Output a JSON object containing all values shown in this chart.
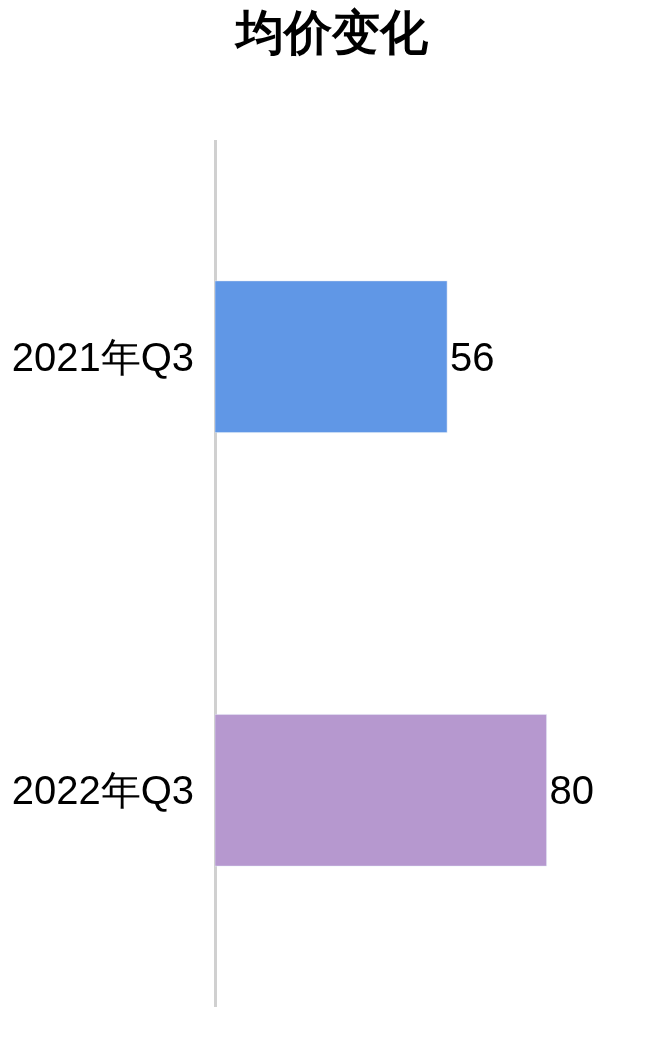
{
  "chart_data": {
    "type": "bar",
    "orientation": "horizontal",
    "title": "均价变化",
    "categories": [
      "2021年Q3",
      "2022年Q3"
    ],
    "values": [
      56,
      80
    ],
    "colors": [
      "#6097e6",
      "#b698cf"
    ],
    "tick_labels": "y",
    "data_labels": true
  }
}
